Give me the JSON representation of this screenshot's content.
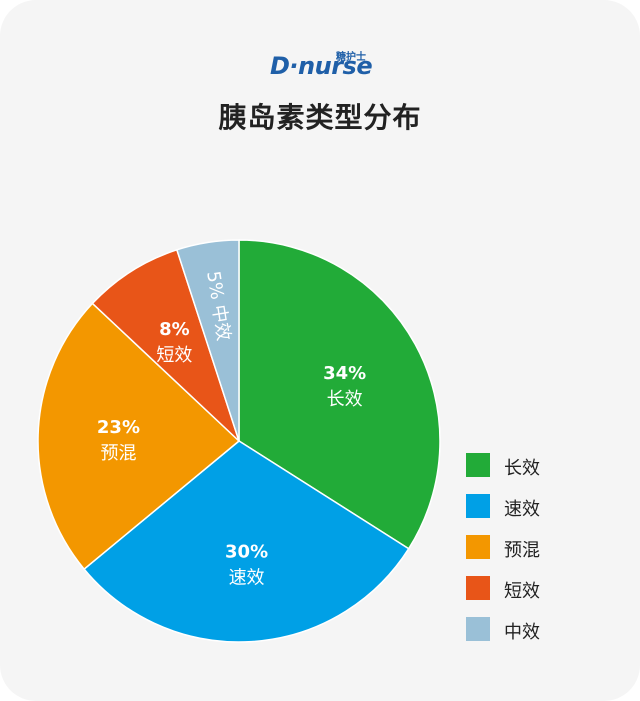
{
  "logo": {
    "main": "D·nurse",
    "cn": "糖护士"
  },
  "chart_data": {
    "type": "pie",
    "title": "胰岛素类型分布",
    "slices": [
      {
        "name": "长效",
        "value": 34,
        "label": "34%",
        "color": "#22ab38"
      },
      {
        "name": "速效",
        "value": 30,
        "label": "30%",
        "color": "#00a0e6"
      },
      {
        "name": "预混",
        "value": 23,
        "label": "23%",
        "color": "#f39700"
      },
      {
        "name": "短效",
        "value": 8,
        "label": "8%",
        "color": "#e85518"
      },
      {
        "name": "中效",
        "value": 5,
        "label": "5%",
        "color": "#9ac0d7"
      }
    ],
    "legend_position": "bottom-right"
  },
  "legend": [
    "长效",
    "速效",
    "预混",
    "短效",
    "中效"
  ]
}
